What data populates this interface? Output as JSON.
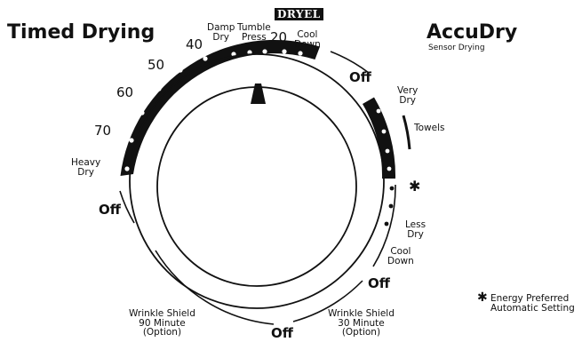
{
  "headings": {
    "timed_drying": "Timed Drying",
    "accudry": "AccuDry",
    "accudry_sub": "Sensor Drying"
  },
  "timed_labels": {
    "t70": "70",
    "t60": "60",
    "t50": "50",
    "t40": "40",
    "t20": "20",
    "heavy_dry": "Heavy\nDry",
    "damp_dry": "Damp\nDry",
    "tumble_press": "Tumble\nPress",
    "dryel": "DRYEL",
    "cool_down_top": "Cool\nDown"
  },
  "sensor_labels": {
    "very_dry": "Very\nDry",
    "towels": "Towels",
    "star": "✱",
    "less_dry": "Less\nDry",
    "cool_down_right": "Cool\nDown"
  },
  "off_labels": {
    "off_top": "Off",
    "off_left": "Off",
    "off_right": "Off",
    "off_bottom": "Off"
  },
  "wrinkle_shield": {
    "ninety": "Wrinkle Shield\n90 Minute\n(Option)",
    "thirty": "Wrinkle Shield\n30 Minute\n(Option)"
  },
  "footnote": {
    "star": "✱",
    "text": "Energy Preferred\nAutomatic Setting"
  },
  "colors": {
    "ink": "#111111",
    "background": "#ffffff"
  }
}
